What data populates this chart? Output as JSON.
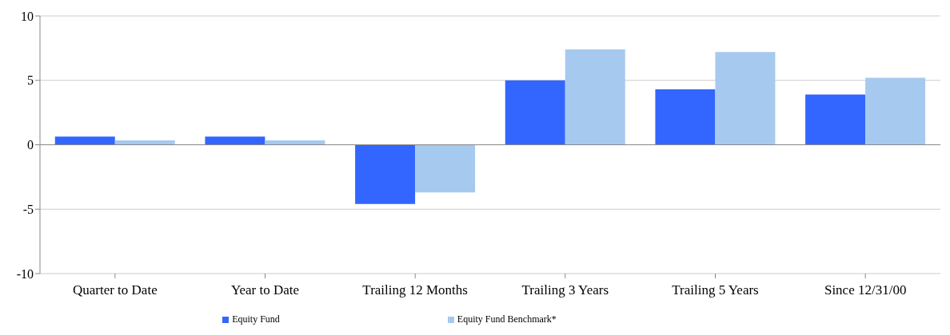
{
  "chart_data": {
    "type": "bar",
    "categories": [
      "Quarter to Date",
      "Year to Date",
      "Trailing 12 Months",
      "Trailing 3 Years",
      "Trailing 5 Years",
      "Since 12/31/00"
    ],
    "series": [
      {
        "name": "Equity Fund",
        "color": "#3366ff",
        "values": [
          0.63,
          0.63,
          -4.6,
          5.0,
          4.3,
          3.9
        ]
      },
      {
        "name": "Equity Fund Benchmark*",
        "color": "#a6c9ef",
        "values": [
          0.34,
          0.34,
          -3.7,
          7.4,
          7.2,
          5.2
        ]
      }
    ],
    "ylim": [
      -10,
      10
    ],
    "yticks": [
      -10,
      -5,
      0,
      5,
      10
    ],
    "grid": "y",
    "legend": "bottom"
  }
}
